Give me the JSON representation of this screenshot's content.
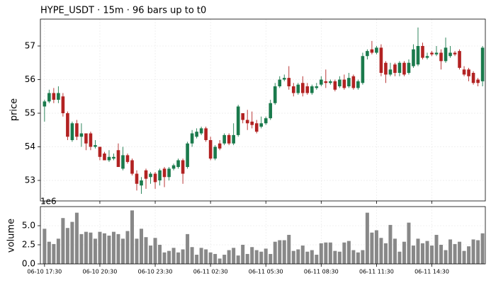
{
  "chart_data": [
    {
      "type": "candlestick",
      "title": "HYPE_USDT  ·  15m  ·  96 bars up to t0",
      "ylabel": "price",
      "up_color": "#1a7a4c",
      "down_color": "#b22222",
      "grid": true,
      "xlim": [
        -0.9,
        95.6
      ],
      "ylim": [
        52.39,
        57.8
      ],
      "yticks": [
        53,
        54,
        55,
        56,
        57
      ],
      "open": [
        55.2,
        55.35,
        55.6,
        55.4,
        55.5,
        55.0,
        54.2,
        54.7,
        54.3,
        54.4,
        54.4,
        54.0,
        54.0,
        53.8,
        53.6,
        53.65,
        53.9,
        53.35,
        53.75,
        53.6,
        53.2,
        52.85,
        53.3,
        53.1,
        53.2,
        53.0,
        53.35,
        53.1,
        53.35,
        53.4,
        53.6,
        53.4,
        54.1,
        54.3,
        54.4,
        54.55,
        54.2,
        53.65,
        54.1,
        54.1,
        54.35,
        54.1,
        54.35,
        55.0,
        54.8,
        54.75,
        54.7,
        54.6,
        54.7,
        54.85,
        55.3,
        55.8,
        56.0,
        56.05,
        55.8,
        55.6,
        55.9,
        55.8,
        55.6,
        55.75,
        55.85,
        55.95,
        55.9,
        55.95,
        55.8,
        56.0,
        55.8,
        56.1,
        55.75,
        55.9,
        56.7,
        56.9,
        56.8,
        56.95,
        56.5,
        56.15,
        56.45,
        56.2,
        56.5,
        56.2,
        56.4,
        56.45,
        57.0,
        56.65,
        56.8,
        56.75,
        56.8,
        56.55,
        56.7,
        56.8,
        56.85,
        56.3,
        56.3,
        56.2,
        56.0,
        55.95
      ],
      "high": [
        55.4,
        55.7,
        55.75,
        55.8,
        55.6,
        55.05,
        54.75,
        54.8,
        54.7,
        54.4,
        54.45,
        54.2,
        54.0,
        53.85,
        53.9,
        53.8,
        54.1,
        54.0,
        53.8,
        53.65,
        53.3,
        53.1,
        53.35,
        53.25,
        53.25,
        53.35,
        53.4,
        53.4,
        53.5,
        53.65,
        53.65,
        54.15,
        54.5,
        54.55,
        54.6,
        54.6,
        54.3,
        54.05,
        54.2,
        54.4,
        54.4,
        54.7,
        55.25,
        55.0,
        55.1,
        55.05,
        54.8,
        54.9,
        54.9,
        55.4,
        55.9,
        56.1,
        56.15,
        56.4,
        55.9,
        55.9,
        56.1,
        55.9,
        55.85,
        55.9,
        56.1,
        56.3,
        56.0,
        56.0,
        56.1,
        56.15,
        56.2,
        56.15,
        56.0,
        56.8,
        56.9,
        57.15,
        57.0,
        57.05,
        56.55,
        56.5,
        56.5,
        56.55,
        56.55,
        56.6,
        57.05,
        57.55,
        57.1,
        56.8,
        56.85,
        57.0,
        56.9,
        57.25,
        57.0,
        56.85,
        56.9,
        56.4,
        56.35,
        56.25,
        56.05,
        57.0
      ],
      "low": [
        54.75,
        55.3,
        55.3,
        55.3,
        54.9,
        54.2,
        54.15,
        54.2,
        54.0,
        53.9,
        53.9,
        53.95,
        53.6,
        53.6,
        53.55,
        53.6,
        53.4,
        53.3,
        53.5,
        53.15,
        52.7,
        52.6,
        52.75,
        52.9,
        52.75,
        52.85,
        52.8,
        53.0,
        53.3,
        53.35,
        52.9,
        53.35,
        54.0,
        54.25,
        54.35,
        54.15,
        53.6,
        53.6,
        53.9,
        54.05,
        54.05,
        54.05,
        54.3,
        54.7,
        54.5,
        54.55,
        54.4,
        54.55,
        54.65,
        54.8,
        55.25,
        55.75,
        55.95,
        55.7,
        55.5,
        55.55,
        55.5,
        55.55,
        55.55,
        55.7,
        55.8,
        55.75,
        55.85,
        55.65,
        55.75,
        55.7,
        55.75,
        55.7,
        55.7,
        55.85,
        56.6,
        56.75,
        56.75,
        56.1,
        55.9,
        56.1,
        56.1,
        56.1,
        56.1,
        56.15,
        56.35,
        56.4,
        56.6,
        56.6,
        56.7,
        56.7,
        56.3,
        56.5,
        56.65,
        56.7,
        56.3,
        56.1,
        55.95,
        55.85,
        55.8,
        55.8
      ],
      "close": [
        55.35,
        55.6,
        55.4,
        55.6,
        55.0,
        54.3,
        54.7,
        54.3,
        54.4,
        54.1,
        54.0,
        54.05,
        53.7,
        53.6,
        53.7,
        53.7,
        53.4,
        53.75,
        53.55,
        53.2,
        52.9,
        53.0,
        53.05,
        53.2,
        52.95,
        53.3,
        53.1,
        53.35,
        53.45,
        53.6,
        53.2,
        54.1,
        54.4,
        54.45,
        54.55,
        54.2,
        53.65,
        54.0,
        53.95,
        54.35,
        54.1,
        54.35,
        55.2,
        54.8,
        54.7,
        54.65,
        54.45,
        54.7,
        54.85,
        55.3,
        55.8,
        56.0,
        56.05,
        55.8,
        55.6,
        55.85,
        55.6,
        55.6,
        55.8,
        55.8,
        56.0,
        55.9,
        55.95,
        55.7,
        56.0,
        55.75,
        56.05,
        55.75,
        55.95,
        56.7,
        56.85,
        56.8,
        56.95,
        56.2,
        56.15,
        56.3,
        56.2,
        56.5,
        56.15,
        56.5,
        56.9,
        57.0,
        56.65,
        56.7,
        56.75,
        56.8,
        56.55,
        56.95,
        56.8,
        56.75,
        56.35,
        56.15,
        56.1,
        55.9,
        55.9,
        56.95
      ]
    },
    {
      "type": "bar",
      "ylabel": "volume",
      "offset_label": "1e6",
      "color": "#888888",
      "grid": true,
      "xlim": [
        -0.9,
        95.6
      ],
      "ylim": [
        0,
        7.5
      ],
      "yticks": [
        {
          "value": 0,
          "label": "0.0"
        },
        2.5,
        {
          "value": 5,
          "label": "5.0"
        }
      ],
      "xticks": [
        {
          "value": 0,
          "label": "06-10 17:30"
        },
        {
          "value": 12,
          "label": "06-10 20:30"
        },
        {
          "value": 24,
          "label": "06-10 23:30"
        },
        {
          "value": 36,
          "label": "06-11 02:30"
        },
        {
          "value": 48,
          "label": "06-11 05:30"
        },
        {
          "value": 60,
          "label": "06-11 08:30"
        },
        {
          "value": 72,
          "label": "06-11 11:30"
        },
        {
          "value": 84,
          "label": "06-11 14:30"
        }
      ],
      "values": [
        4.6,
        2.9,
        2.6,
        3.3,
        6.0,
        4.7,
        5.5,
        6.7,
        3.9,
        4.2,
        4.1,
        3.3,
        4.2,
        4.0,
        3.7,
        4.2,
        3.9,
        3.3,
        4.3,
        7.0,
        3.3,
        4.6,
        3.5,
        2.4,
        3.4,
        2.5,
        1.5,
        1.7,
        2.1,
        1.5,
        1.9,
        3.9,
        2.2,
        1.2,
        2.1,
        1.9,
        1.5,
        1.3,
        0.7,
        1.2,
        1.8,
        2.1,
        1.1,
        2.5,
        1.3,
        2.2,
        1.8,
        1.6,
        2.0,
        1.3,
        2.9,
        3.1,
        3.1,
        3.8,
        1.7,
        1.9,
        2.4,
        1.6,
        1.8,
        1.2,
        2.7,
        2.8,
        2.8,
        1.7,
        1.6,
        2.8,
        3.0,
        1.8,
        1.5,
        1.8,
        6.7,
        4.1,
        4.4,
        3.4,
        2.7,
        5.1,
        3.3,
        1.6,
        2.9,
        5.4,
        2.4,
        3.3,
        2.7,
        3.0,
        2.4,
        3.8,
        2.5,
        1.8,
        3.2,
        2.6,
        2.9,
        1.7,
        2.3,
        3.2,
        3.1,
        4.0
      ]
    }
  ]
}
